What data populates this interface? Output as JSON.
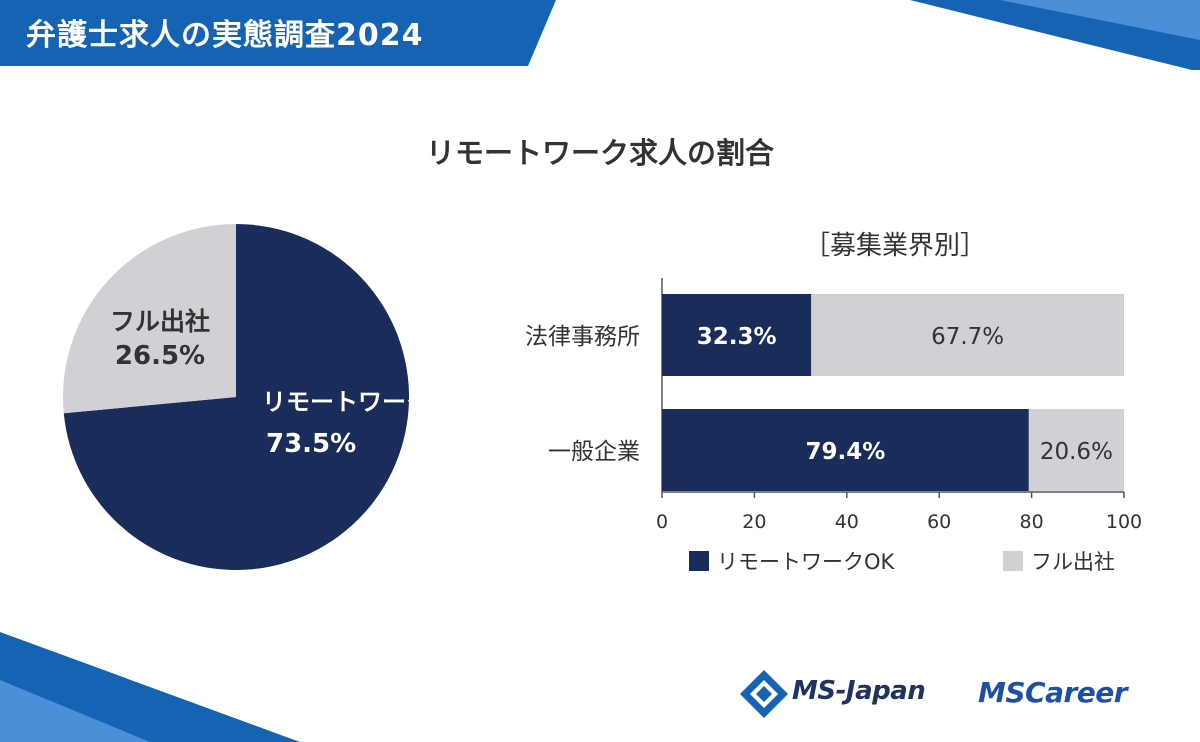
{
  "header": {
    "title": "弁護士求人の実態調査2024"
  },
  "main_title": "リモートワーク求人の割合",
  "bar_section_title": "［募集業界別］",
  "logos": {
    "ms_japan": "MS-Japan",
    "ms_career": "MSCareer"
  },
  "colors": {
    "navy": "#1a2d5a",
    "gray": "#d0d0d5",
    "banner_blue": "#1663b4",
    "text_dark": "#333333"
  },
  "chart_data": [
    {
      "type": "pie",
      "slices": [
        {
          "label": "リモートワークOK",
          "value": 73.5,
          "value_label": "73.5%",
          "color": "#1a2d5a"
        },
        {
          "label": "フル出社",
          "value": 26.5,
          "value_label": "26.5%",
          "color": "#d0d0d5"
        }
      ]
    },
    {
      "type": "bar",
      "orientation": "horizontal",
      "stacked": true,
      "categories": [
        "法律事務所",
        "一般企業"
      ],
      "series": [
        {
          "name": "リモートワークOK",
          "values": [
            32.3,
            79.4
          ],
          "value_labels": [
            "32.3%",
            "79.4%"
          ],
          "color": "#1a2d5a"
        },
        {
          "name": "フル出社",
          "values": [
            67.7,
            20.6
          ],
          "value_labels": [
            "67.7%",
            "20.6%"
          ],
          "color": "#d0d0d5"
        }
      ],
      "xlim": [
        0,
        100
      ],
      "xticks": [
        0,
        20,
        40,
        60,
        80,
        100
      ],
      "grid": false,
      "legend": "bottom"
    }
  ]
}
